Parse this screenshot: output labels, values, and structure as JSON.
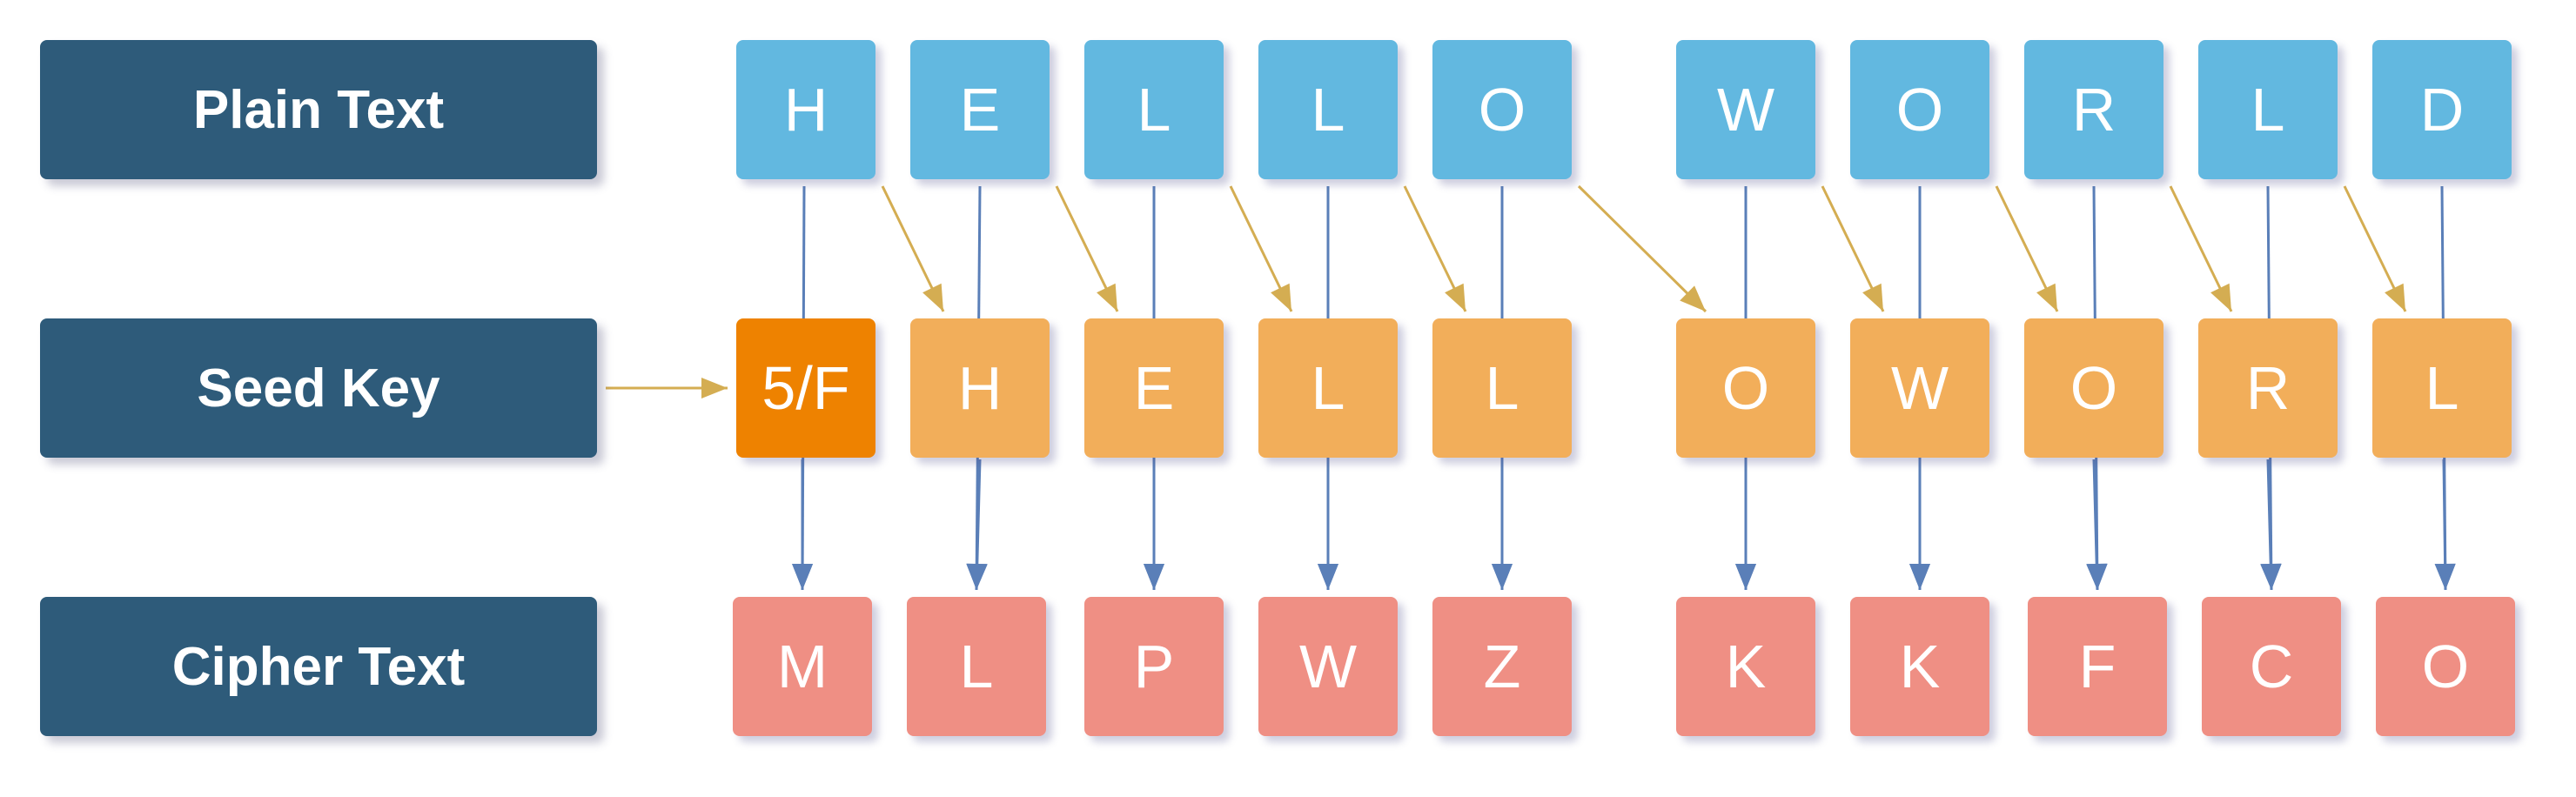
{
  "labels": {
    "plain": "Plain Text",
    "seed": "Seed Key",
    "cipher": "Cipher Text"
  },
  "plain": [
    "H",
    "E",
    "L",
    "L",
    "O",
    "W",
    "O",
    "R",
    "L",
    "D"
  ],
  "seed": [
    "5/F",
    "H",
    "E",
    "L",
    "L",
    "O",
    "W",
    "O",
    "R",
    "L"
  ],
  "cipher": [
    "M",
    "L",
    "P",
    "W",
    "Z",
    "K",
    "K",
    "F",
    "C",
    "O"
  ],
  "colors": {
    "label_bg": "#2e5b7a",
    "plain_bg": "#62b8e0",
    "seed_bg": "#f2ae5a",
    "seed_initial_bg": "#ee8200",
    "cipher_bg": "#ef8f84",
    "vertical_arrow": "#5a7fb8",
    "diagonal_arrow": "#d4ad52"
  }
}
